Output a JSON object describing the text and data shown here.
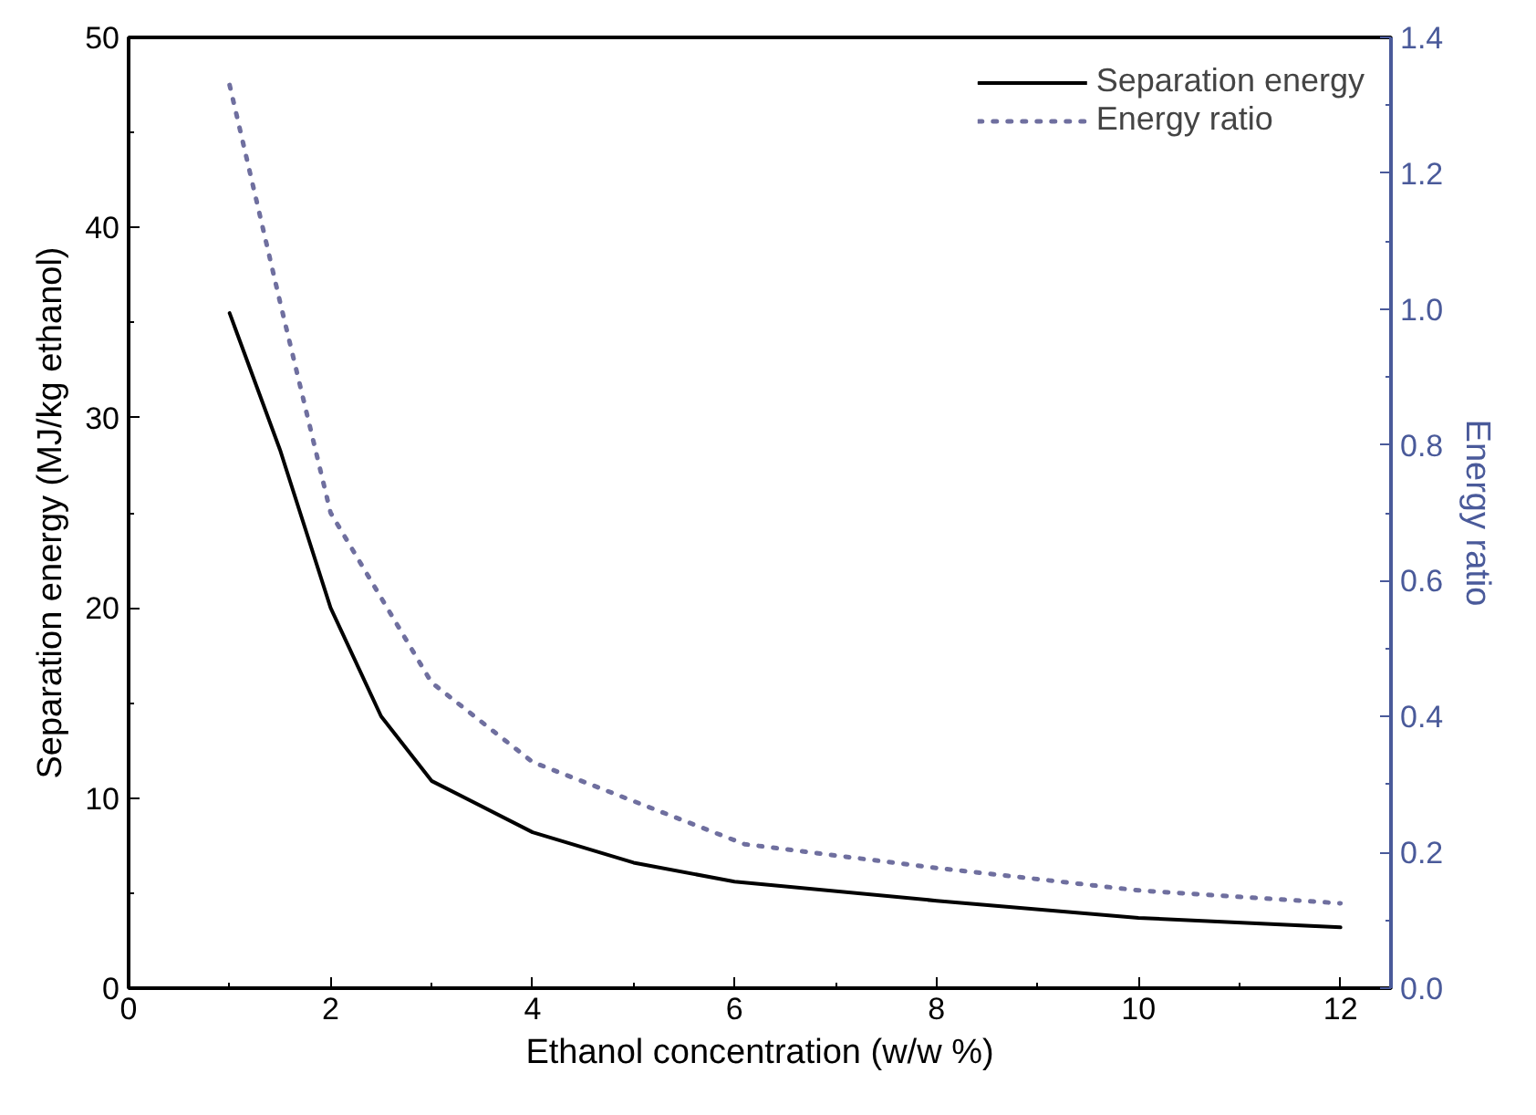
{
  "chart_data": {
    "type": "line",
    "xlabel": "Ethanol concentration (w/w %)",
    "ylabel": "Separation energy (MJ/kg ethanol)",
    "y2label": "Energy ratio",
    "xlim": [
      0,
      12.5
    ],
    "xticks": [
      0,
      {
        "value": 1,
        "label": null
      },
      2,
      {
        "value": 3,
        "label": null
      },
      4,
      {
        "value": 5,
        "label": null
      },
      6,
      {
        "value": 7,
        "label": null
      },
      8,
      {
        "value": 9,
        "label": null
      },
      10,
      {
        "value": 11,
        "label": null
      },
      12
    ],
    "ylim": [
      0,
      50
    ],
    "yticks": [
      0,
      {
        "value": 5,
        "label": null
      },
      10,
      {
        "value": 15,
        "label": null
      },
      20,
      {
        "value": 25,
        "label": null
      },
      30,
      {
        "value": 35,
        "label": null
      },
      40,
      {
        "value": 45,
        "label": null
      },
      50
    ],
    "y2lim": [
      0,
      1.4
    ],
    "y2ticks": [
      {
        "value": 0,
        "label": "0.0"
      },
      {
        "value": 0.1,
        "label": null
      },
      0.2,
      {
        "value": 0.3,
        "label": null
      },
      0.4,
      {
        "value": 0.5,
        "label": null
      },
      0.6,
      {
        "value": 0.7,
        "label": null
      },
      0.8,
      {
        "value": 0.9,
        "label": null
      },
      {
        "value": 1,
        "label": "1.0"
      },
      {
        "value": 1.1,
        "label": null
      },
      1.2,
      {
        "value": 1.3,
        "label": null
      },
      1.4
    ],
    "grid": false,
    "legend": "top right",
    "marker": "none",
    "series": [
      {
        "name": "Separation energy",
        "color": "#000000",
        "line_style": "solid",
        "x": [
          1,
          1.5,
          2,
          2.5,
          3,
          4,
          5,
          6,
          8,
          10,
          12
        ],
        "values": [
          35.5,
          28.3,
          20,
          14.3,
          10.9,
          8.2,
          6.6,
          5.6,
          4.6,
          3.7,
          3.2
        ]
      },
      {
        "name": "Energy ratio",
        "color": "#6f6f9f",
        "line_style": "dotted",
        "axis": "y2",
        "x": [
          1,
          1.5,
          2,
          3,
          4,
          6.1,
          8,
          10,
          12
        ],
        "values": [
          1.33,
          1.01,
          0.7,
          0.45,
          0.333,
          0.212,
          0.177,
          0.144,
          0.125
        ]
      }
    ]
  }
}
